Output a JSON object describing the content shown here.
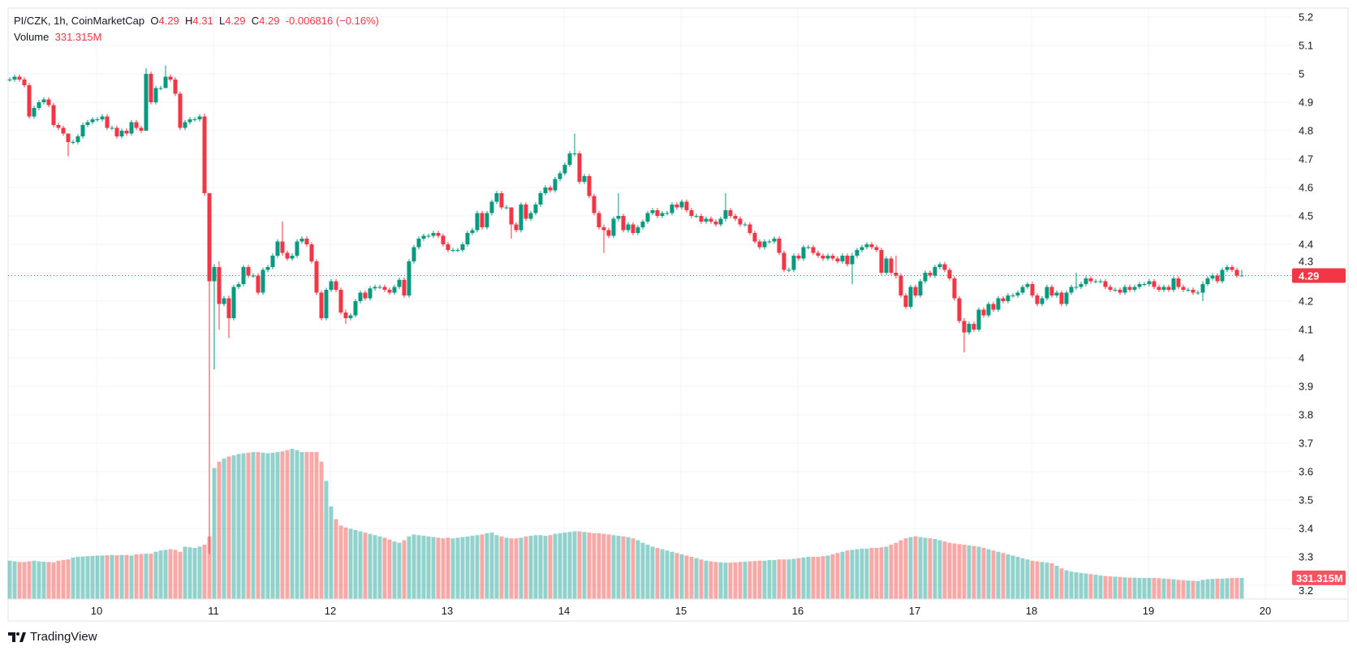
{
  "header": {
    "symbol": "PI/CZK, 1h, CoinMarketCap",
    "o_label": "O",
    "o_value": "4.29",
    "h_label": "H",
    "h_value": "4.31",
    "l_label": "L",
    "l_value": "4.29",
    "c_label": "C",
    "c_value": "4.29",
    "change": "-0.006816 (−0.16%)",
    "volume_label": "Volume",
    "volume_value": "331.315M"
  },
  "branding": {
    "name": "TradingView"
  },
  "colors": {
    "up": "#089981",
    "down": "#f23645",
    "volume_up": "#26a69a",
    "volume_down": "#ef5350",
    "grid": "#f0f3fa",
    "last_price": "#f23645"
  },
  "chart_data": {
    "type": "candlestick",
    "interval": "1h",
    "start": "9 06:00",
    "x_tick_labels": [
      "10",
      "11",
      "12",
      "13",
      "14",
      "15",
      "16",
      "17",
      "18",
      "19",
      "20"
    ],
    "y_tick_labels": [
      "5.2",
      "5.1",
      "5",
      "4.9",
      "4.8",
      "4.7",
      "4.6",
      "4.5",
      "4.4",
      "4.3",
      "4.2",
      "4.1",
      "4",
      "3.9",
      "3.8",
      "3.7",
      "3.6",
      "3.5",
      "3.4",
      "3.3",
      "3.2"
    ],
    "ylim": [
      3.2,
      5.2
    ],
    "grid": true,
    "last_price_label": "4.29",
    "last_volume_label": "331.315M",
    "close": [
      4.98,
      4.99,
      4.98,
      4.96,
      4.85,
      4.88,
      4.9,
      4.91,
      4.89,
      4.82,
      4.81,
      4.79,
      4.76,
      4.76,
      4.78,
      4.82,
      4.83,
      4.84,
      4.84,
      4.85,
      4.81,
      4.81,
      4.78,
      4.8,
      4.79,
      4.83,
      4.81,
      4.8,
      5.0,
      4.9,
      4.95,
      4.95,
      4.99,
      4.98,
      4.93,
      4.81,
      4.83,
      4.84,
      4.84,
      4.85,
      4.58,
      4.27,
      4.32,
      4.19,
      4.21,
      4.14,
      4.25,
      4.26,
      4.32,
      4.29,
      4.29,
      4.23,
      4.31,
      4.32,
      4.36,
      4.41,
      4.37,
      4.35,
      4.36,
      4.41,
      4.42,
      4.4,
      4.34,
      4.23,
      4.14,
      4.24,
      4.27,
      4.24,
      4.16,
      4.14,
      4.15,
      4.2,
      4.23,
      4.21,
      4.245,
      4.25,
      4.25,
      4.24,
      4.23,
      4.25,
      4.275,
      4.22,
      4.34,
      4.39,
      4.42,
      4.43,
      4.43,
      4.44,
      4.43,
      4.4,
      4.38,
      4.38,
      4.38,
      4.4,
      4.44,
      4.45,
      4.51,
      4.46,
      4.51,
      4.55,
      4.58,
      4.53,
      4.53,
      4.47,
      4.45,
      4.54,
      4.49,
      4.51,
      4.54,
      4.58,
      4.6,
      4.59,
      4.63,
      4.65,
      4.68,
      4.72,
      4.72,
      4.62,
      4.64,
      4.57,
      4.51,
      4.46,
      4.45,
      4.43,
      4.49,
      4.5,
      4.45,
      4.47,
      4.44,
      4.46,
      4.48,
      4.51,
      4.52,
      4.5,
      4.51,
      4.51,
      4.54,
      4.53,
      4.55,
      4.52,
      4.5,
      4.5,
      4.48,
      4.49,
      4.48,
      4.47,
      4.49,
      4.52,
      4.5,
      4.49,
      4.47,
      4.47,
      4.44,
      4.41,
      4.39,
      4.41,
      4.41,
      4.42,
      4.37,
      4.31,
      4.31,
      4.36,
      4.35,
      4.39,
      4.39,
      4.37,
      4.36,
      4.35,
      4.36,
      4.35,
      4.34,
      4.36,
      4.33,
      4.36,
      4.38,
      4.39,
      4.4,
      4.39,
      4.38,
      4.3,
      4.35,
      4.3,
      4.29,
      4.22,
      4.18,
      4.25,
      4.22,
      4.27,
      4.3,
      4.29,
      4.32,
      4.33,
      4.31,
      4.28,
      4.21,
      4.13,
      4.09,
      4.12,
      4.1,
      4.17,
      4.15,
      4.19,
      4.17,
      4.21,
      4.2,
      4.22,
      4.22,
      4.23,
      4.25,
      4.26,
      4.22,
      4.19,
      4.21,
      4.25,
      4.22,
      4.23,
      4.19,
      4.23,
      4.25,
      4.25,
      4.26,
      4.28,
      4.27,
      4.27,
      4.27,
      4.25,
      4.24,
      4.24,
      4.23,
      4.25,
      4.24,
      4.25,
      4.26,
      4.26,
      4.27,
      4.25,
      4.24,
      4.25,
      4.24,
      4.28,
      4.25,
      4.24,
      4.24,
      4.23,
      4.23,
      4.26,
      4.28,
      4.29,
      4.27,
      4.31,
      4.32,
      4.31,
      4.29,
      4.29
    ],
    "wick_extremes": {
      "12": [
        4.78,
        4.71
      ],
      "28": [
        5.02,
        4.8
      ],
      "32": [
        5.03,
        4.95
      ],
      "40": [
        4.86,
        4.57
      ],
      "41": [
        4.58,
        3.31
      ],
      "42": [
        4.33,
        3.96
      ],
      "43": [
        4.34,
        4.1
      ],
      "45": [
        4.22,
        4.07
      ],
      "56": [
        4.48,
        4.36
      ],
      "69": [
        4.17,
        4.12
      ],
      "103": [
        4.53,
        4.42
      ],
      "116": [
        4.79,
        4.71
      ],
      "122": [
        4.47,
        4.37
      ],
      "125": [
        4.58,
        4.48
      ],
      "147": [
        4.58,
        4.48
      ],
      "173": [
        4.37,
        4.26
      ],
      "182": [
        4.36,
        4.28
      ],
      "196": [
        4.14,
        4.02
      ],
      "219": [
        4.3,
        4.24
      ],
      "245": [
        4.27,
        4.2
      ],
      "253": [
        4.31,
        4.29
      ]
    },
    "volume_millions": [
      600,
      590,
      580,
      580,
      590,
      600,
      590,
      585,
      580,
      575,
      600,
      610,
      620,
      650,
      660,
      665,
      670,
      675,
      680,
      680,
      685,
      690,
      685,
      690,
      690,
      680,
      700,
      705,
      710,
      710,
      740,
      760,
      770,
      780,
      770,
      740,
      820,
      810,
      800,
      820,
      850,
      980,
      2050,
      2150,
      2200,
      2230,
      2250,
      2270,
      2280,
      2290,
      2300,
      2300,
      2290,
      2280,
      2290,
      2300,
      2310,
      2330,
      2350,
      2330,
      2300,
      2300,
      2300,
      2300,
      2150,
      1850,
      1450,
      1250,
      1150,
      1120,
      1100,
      1080,
      1060,
      1040,
      1020,
      1000,
      980,
      960,
      930,
      900,
      880,
      920,
      980,
      1010,
      1000,
      990,
      980,
      970,
      960,
      950,
      960,
      950,
      960,
      970,
      980,
      990,
      1000,
      1010,
      1030,
      1040,
      1000,
      980,
      960,
      950,
      950,
      960,
      980,
      990,
      1000,
      1000,
      990,
      1000,
      1020,
      1030,
      1040,
      1050,
      1060,
      1060,
      1050,
      1040,
      1030,
      1030,
      1020,
      1010,
      1000,
      990,
      980,
      970,
      950,
      920,
      880,
      850,
      820,
      800,
      780,
      760,
      740,
      720,
      700,
      680,
      660,
      640,
      620,
      600,
      590,
      580,
      575,
      570,
      570,
      575,
      580,
      585,
      590,
      595,
      600,
      600,
      610,
      610,
      620,
      620,
      620,
      630,
      640,
      650,
      660,
      660,
      660,
      670,
      680,
      700,
      720,
      740,
      760,
      770,
      780,
      790,
      790,
      800,
      800,
      810,
      820,
      850,
      880,
      920,
      950,
      970,
      980,
      970,
      960,
      950,
      940,
      920,
      900,
      880,
      870,
      860,
      850,
      840,
      830,
      820,
      800,
      780,
      760,
      740,
      720,
      700,
      680,
      660,
      640,
      620,
      600,
      590,
      580,
      570,
      560,
      520,
      480,
      450,
      430,
      420,
      410,
      400,
      390,
      380,
      370,
      360,
      355,
      350,
      345,
      340,
      335,
      335,
      330,
      330,
      330,
      330,
      325,
      320,
      315,
      310,
      300,
      295,
      290,
      285,
      280,
      300,
      310,
      315,
      320,
      320,
      325,
      330,
      330,
      331.315
    ]
  }
}
